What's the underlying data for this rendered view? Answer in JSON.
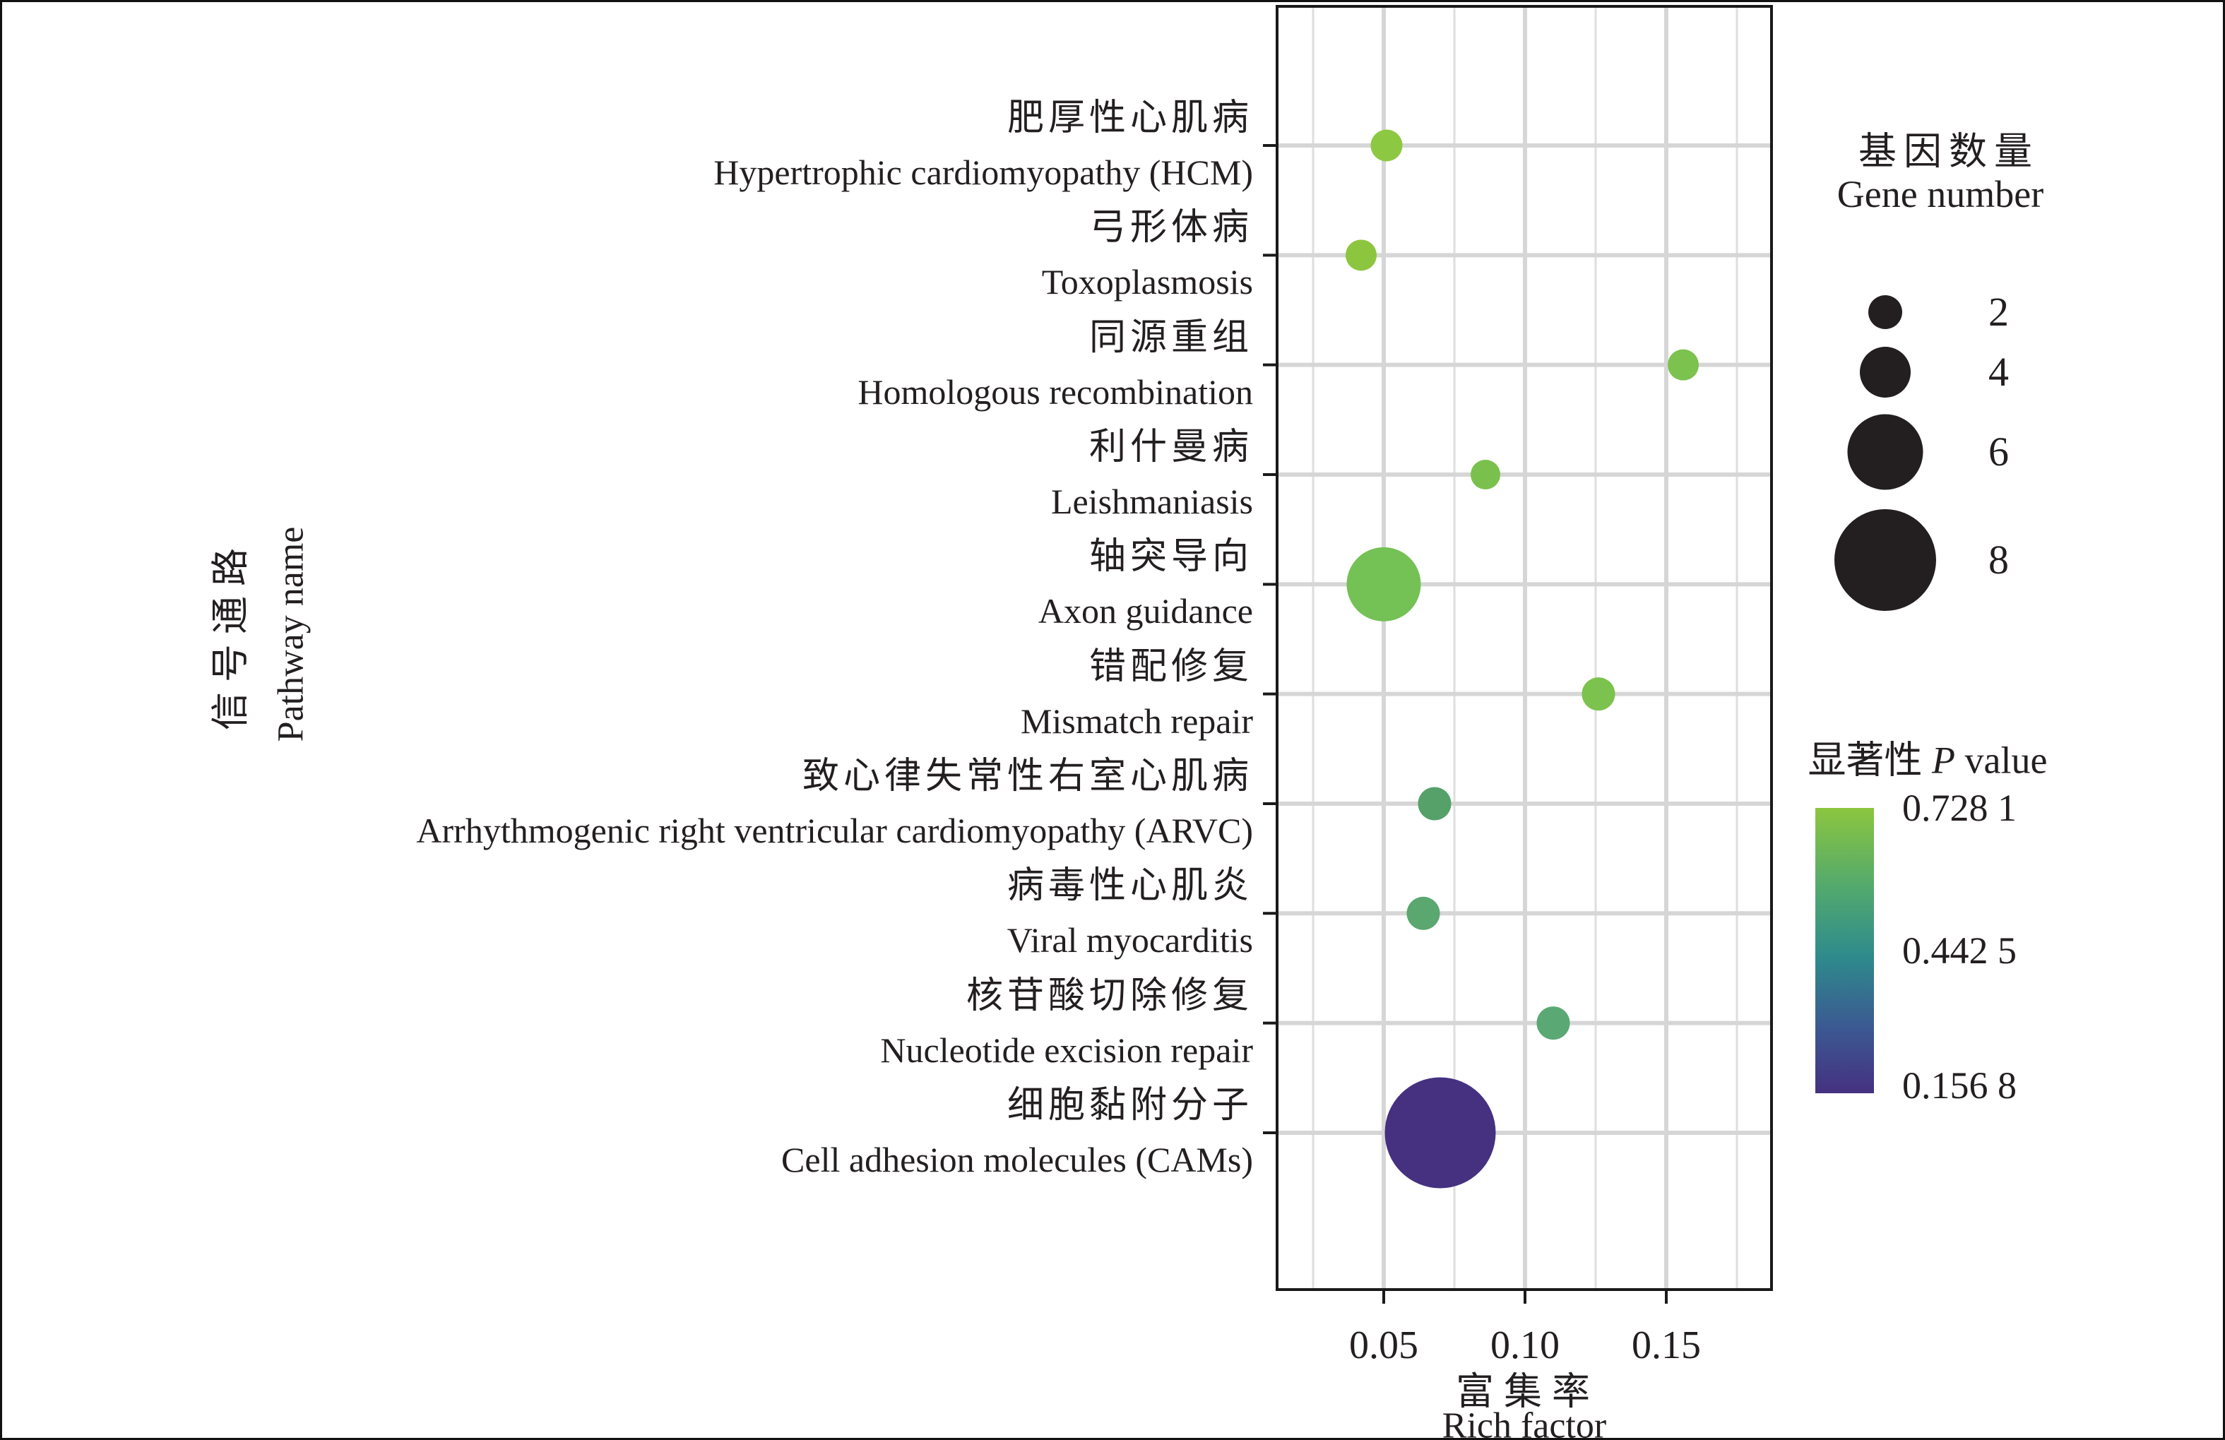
{
  "figure": {
    "text_color": "#231F20",
    "panel_border_color": "#1A1A1A",
    "grid_major_color": "#D6D6D6",
    "grid_minor_color": "#DEDEDE"
  },
  "chart_data": {
    "type": "scatter",
    "subtype": "bubble",
    "grid": true,
    "y_axis": {
      "title_cn": "信号通路",
      "title_en": "Pathway name"
    },
    "x_axis": {
      "title_cn": "富集率",
      "title_en": "Rich factor",
      "tick_labels": [
        "0.05",
        "0.10",
        "0.15"
      ],
      "tick_values": [
        0.05,
        0.1,
        0.15
      ],
      "minor_gridlines": [
        0.025,
        0.075,
        0.125,
        0.175
      ],
      "range": [
        0.0123,
        0.1873
      ]
    },
    "points": [
      {
        "pathway_cn": "肥厚性心肌病",
        "pathway_en": "Hypertrophic cardiomyopathy (HCM)",
        "rich_factor": 0.051,
        "gene_number": 2,
        "p_value": 0.73,
        "color": "#8DC843",
        "diameter": 45
      },
      {
        "pathway_cn": "弓形体病",
        "pathway_en": "Toxoplasmosis",
        "rich_factor": 0.042,
        "gene_number": 2,
        "p_value": 0.72,
        "color": "#8CC63F",
        "diameter": 44
      },
      {
        "pathway_cn": "同源重组",
        "pathway_en": "Homologous recombination",
        "rich_factor": 0.156,
        "gene_number": 2,
        "p_value": 0.69,
        "color": "#7CC24E",
        "diameter": 44
      },
      {
        "pathway_cn": "利什曼病",
        "pathway_en": "Leishmaniasis",
        "rich_factor": 0.086,
        "gene_number": 2,
        "p_value": 0.68,
        "color": "#79C14C",
        "diameter": 42
      },
      {
        "pathway_cn": "轴突导向",
        "pathway_en": "Axon guidance",
        "rich_factor": 0.05,
        "gene_number": 6,
        "p_value": 0.66,
        "color": "#74C155",
        "diameter": 105
      },
      {
        "pathway_cn": "错配修复",
        "pathway_en": "Mismatch repair",
        "rich_factor": 0.126,
        "gene_number": 2,
        "p_value": 0.69,
        "color": "#7CC24E",
        "diameter": 47
      },
      {
        "pathway_cn": "致心律失常性右室心肌病",
        "pathway_en": "Arrhythmogenic right ventricular cardiomyopathy (ARVC)",
        "rich_factor": 0.068,
        "gene_number": 2,
        "p_value": 0.49,
        "color": "#55A169",
        "diameter": 47
      },
      {
        "pathway_cn": "病毒性心肌炎",
        "pathway_en": "Viral myocarditis",
        "rich_factor": 0.064,
        "gene_number": 2,
        "p_value": 0.51,
        "color": "#5AA76F",
        "diameter": 47
      },
      {
        "pathway_cn": "核苷酸切除修复",
        "pathway_en": "Nucleotide excision repair",
        "rich_factor": 0.11,
        "gene_number": 2,
        "p_value": 0.51,
        "color": "#5AA873",
        "diameter": 47
      },
      {
        "pathway_cn": "细胞黏附分子",
        "pathway_en": "Cell adhesion molecules (CAMs)",
        "rich_factor": 0.07,
        "gene_number": 9,
        "p_value": 0.157,
        "color": "#453180",
        "diameter": 157
      }
    ],
    "size_legend": {
      "title_cn": "基因数量",
      "title_en": "Gene number",
      "circle_color": "#231F20",
      "entries": [
        {
          "gene_number": "2",
          "diameter": 48
        },
        {
          "gene_number": "4",
          "diameter": 72
        },
        {
          "gene_number": "6",
          "diameter": 107
        },
        {
          "gene_number": "8",
          "diameter": 144
        }
      ]
    },
    "color_legend": {
      "title_cn": "显著性",
      "title_italic": "P",
      "title_suffix": "value",
      "labels": [
        {
          "text": "0.728 1",
          "pos": 0
        },
        {
          "text": "0.442 5",
          "pos": 0.5
        },
        {
          "text": "0.156 8",
          "pos": 0.973
        }
      ],
      "gradient_stops": [
        "#8CC63F 0%",
        "#52A96E 28%",
        "#2E8B8C 52%",
        "#3C5792 78%",
        "#453180 100%"
      ]
    }
  }
}
